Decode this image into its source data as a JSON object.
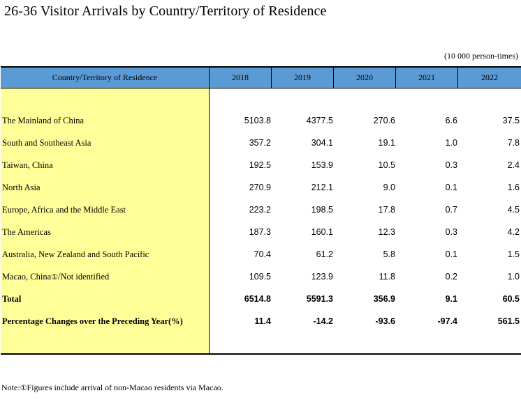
{
  "title": "26-36  Visitor Arrivals by Country/Territory of Residence",
  "unit": "(10 000 person-times)",
  "table": {
    "stub_header": "Country/Territory of Residence",
    "years": [
      "2018",
      "2019",
      "2020",
      "2021",
      "2022"
    ],
    "rows": [
      {
        "label": "The Mainland of China",
        "values": [
          "5103.8",
          "4377.5",
          "270.6",
          "6.6",
          "37.5"
        ]
      },
      {
        "label": "South and Southeast Asia",
        "values": [
          "357.2",
          "304.1",
          "19.1",
          "1.0",
          "7.8"
        ]
      },
      {
        "label": "Taiwan, China",
        "values": [
          "192.5",
          "153.9",
          "10.5",
          "0.3",
          "2.4"
        ]
      },
      {
        "label": "North Asia",
        "values": [
          "270.9",
          "212.1",
          "9.0",
          "0.1",
          "1.6"
        ]
      },
      {
        "label": "Europe, Africa and the Middle East",
        "values": [
          "223.2",
          "198.5",
          "17.8",
          "0.7",
          "4.5"
        ]
      },
      {
        "label": "The Americas",
        "values": [
          "187.3",
          "160.1",
          "12.3",
          "0.3",
          "4.2"
        ]
      },
      {
        "label": "Australia, New Zealand and South Pacific",
        "values": [
          "70.4",
          "61.2",
          "5.8",
          "0.1",
          "1.5"
        ]
      },
      {
        "label_main": "Macao, China",
        "label_marker": "①",
        "label_rest": "/Not identified",
        "values": [
          "109.5",
          "123.9",
          "11.8",
          "0.2",
          "1.0"
        ]
      },
      {
        "label": "Total",
        "values": [
          "6514.8",
          "5591.3",
          "356.9",
          "9.1",
          "60.5"
        ]
      },
      {
        "label": "Percentage Changes over the Preceding Year(%)",
        "values": [
          "11.4",
          "-14.2",
          "-93.6",
          "-97.4",
          "561.5"
        ]
      }
    ]
  },
  "note": {
    "prefix": "Note:",
    "marker": "①",
    "text": "Figures include arrival of non-Macao residents via Macao."
  },
  "colors": {
    "header_bg": "#5b9bd5",
    "stub_bg": "#ffff99"
  }
}
